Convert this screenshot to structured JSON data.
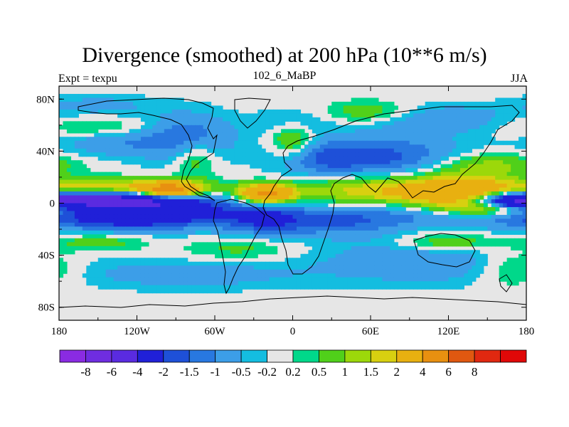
{
  "title": "Divergence (smoothed) at 200 hPa (10**6 m/s)",
  "left_string": "Expt = texpu",
  "center_string": "102_6_MaBP",
  "right_string": "JJA",
  "x_ticks": [
    {
      "lon": -180,
      "label": "180"
    },
    {
      "lon": -120,
      "label": "120W"
    },
    {
      "lon": -60,
      "label": "60W"
    },
    {
      "lon": 0,
      "label": "0"
    },
    {
      "lon": 60,
      "label": "60E"
    },
    {
      "lon": 120,
      "label": "120E"
    },
    {
      "lon": 180,
      "label": "180"
    }
  ],
  "y_ticks": [
    {
      "lat": 80,
      "label": "80N"
    },
    {
      "lat": 40,
      "label": "40N"
    },
    {
      "lat": 0,
      "label": "0"
    },
    {
      "lat": -40,
      "label": "40S"
    },
    {
      "lat": -80,
      "label": "80S"
    }
  ],
  "colorbar": {
    "colors": [
      "#8a2be2",
      "#6f2de0",
      "#5a2be0",
      "#2020d8",
      "#1e50d8",
      "#2878e0",
      "#3c9ee8",
      "#14bde0",
      "#e6e6e6",
      "#00d88a",
      "#50d01a",
      "#9cd80a",
      "#d8d010",
      "#e8b010",
      "#e89010",
      "#e05810",
      "#e02810",
      "#e00808"
    ],
    "labels": [
      "-8",
      "-6",
      "-4",
      "-2",
      "-1.5",
      "-1",
      "-0.5",
      "-0.2",
      "0.2",
      "0.5",
      "1",
      "1.5",
      "2",
      "4",
      "6",
      "8"
    ]
  },
  "fields": [
    {
      "lon": -150,
      "lat": 3,
      "value": -4,
      "slon": 40,
      "slat": 4
    },
    {
      "lon": -105,
      "lat": -5,
      "value": -3,
      "slon": 40,
      "slat": 9
    },
    {
      "lon": -150,
      "lat": -12,
      "value": -1.3,
      "slon": 45,
      "slat": 7
    },
    {
      "lon": -20,
      "lat": -12,
      "value": -2,
      "slon": 25,
      "slat": 9
    },
    {
      "lon": 40,
      "lat": -15,
      "value": -1.2,
      "slon": 30,
      "slat": 8
    },
    {
      "lon": 110,
      "lat": -8,
      "value": -1.3,
      "slon": 50,
      "slat": 7
    },
    {
      "lon": 170,
      "lat": 2,
      "value": -2.5,
      "slon": 20,
      "slat": 4
    },
    {
      "lon": 75,
      "lat": 35,
      "value": -1.6,
      "slon": 40,
      "slat": 12
    },
    {
      "lon": 20,
      "lat": 35,
      "value": -1.2,
      "slon": 25,
      "slat": 10
    },
    {
      "lon": -80,
      "lat": 50,
      "value": -1.4,
      "slon": 25,
      "slat": 14
    },
    {
      "lon": -140,
      "lat": 48,
      "value": -1.0,
      "slon": 30,
      "slat": 9
    },
    {
      "lon": 110,
      "lat": 65,
      "value": -1.0,
      "slon": 40,
      "slat": 8
    },
    {
      "lon": -150,
      "lat": 75,
      "value": -0.7,
      "slon": 30,
      "slat": 6
    },
    {
      "lon": 0,
      "lat": 62,
      "value": -0.7,
      "slon": 20,
      "slat": 8
    },
    {
      "lon": 100,
      "lat": -45,
      "value": -1.0,
      "slon": 60,
      "slat": 12
    },
    {
      "lon": -80,
      "lat": -55,
      "value": -0.8,
      "slon": 60,
      "slat": 8
    },
    {
      "lon": -130,
      "lat": 12,
      "value": 2.2,
      "slon": 50,
      "slat": 5
    },
    {
      "lon": -95,
      "lat": 10,
      "value": 4.5,
      "slon": 15,
      "slat": 4
    },
    {
      "lon": -20,
      "lat": 7,
      "value": 4.5,
      "slon": 15,
      "slat": 5
    },
    {
      "lon": 55,
      "lat": 10,
      "value": 1.8,
      "slon": 35,
      "slat": 8
    },
    {
      "lon": 125,
      "lat": 8,
      "value": 3.5,
      "slon": 30,
      "slat": 10
    },
    {
      "lon": 150,
      "lat": -5,
      "value": 1.6,
      "slon": 25,
      "slat": 4
    },
    {
      "lon": -150,
      "lat": -30,
      "value": 0.9,
      "slon": 25,
      "slat": 5
    },
    {
      "lon": -40,
      "lat": -35,
      "value": 0.7,
      "slon": 30,
      "slat": 6
    },
    {
      "lon": 120,
      "lat": -30,
      "value": 1.2,
      "slon": 25,
      "slat": 5
    },
    {
      "lon": 0,
      "lat": 48,
      "value": 1.5,
      "slon": 12,
      "slat": 10
    },
    {
      "lon": -75,
      "lat": 35,
      "value": 1.2,
      "slon": 12,
      "slat": 10
    },
    {
      "lon": -150,
      "lat": 58,
      "value": 1.0,
      "slon": 30,
      "slat": 6
    },
    {
      "lon": 60,
      "lat": 70,
      "value": 1.1,
      "slon": 25,
      "slat": 6
    },
    {
      "lon": 150,
      "lat": 30,
      "value": 1.2,
      "slon": 30,
      "slat": 6
    },
    {
      "lon": 170,
      "lat": -50,
      "value": 1.0,
      "slon": 20,
      "slat": 10
    }
  ]
}
